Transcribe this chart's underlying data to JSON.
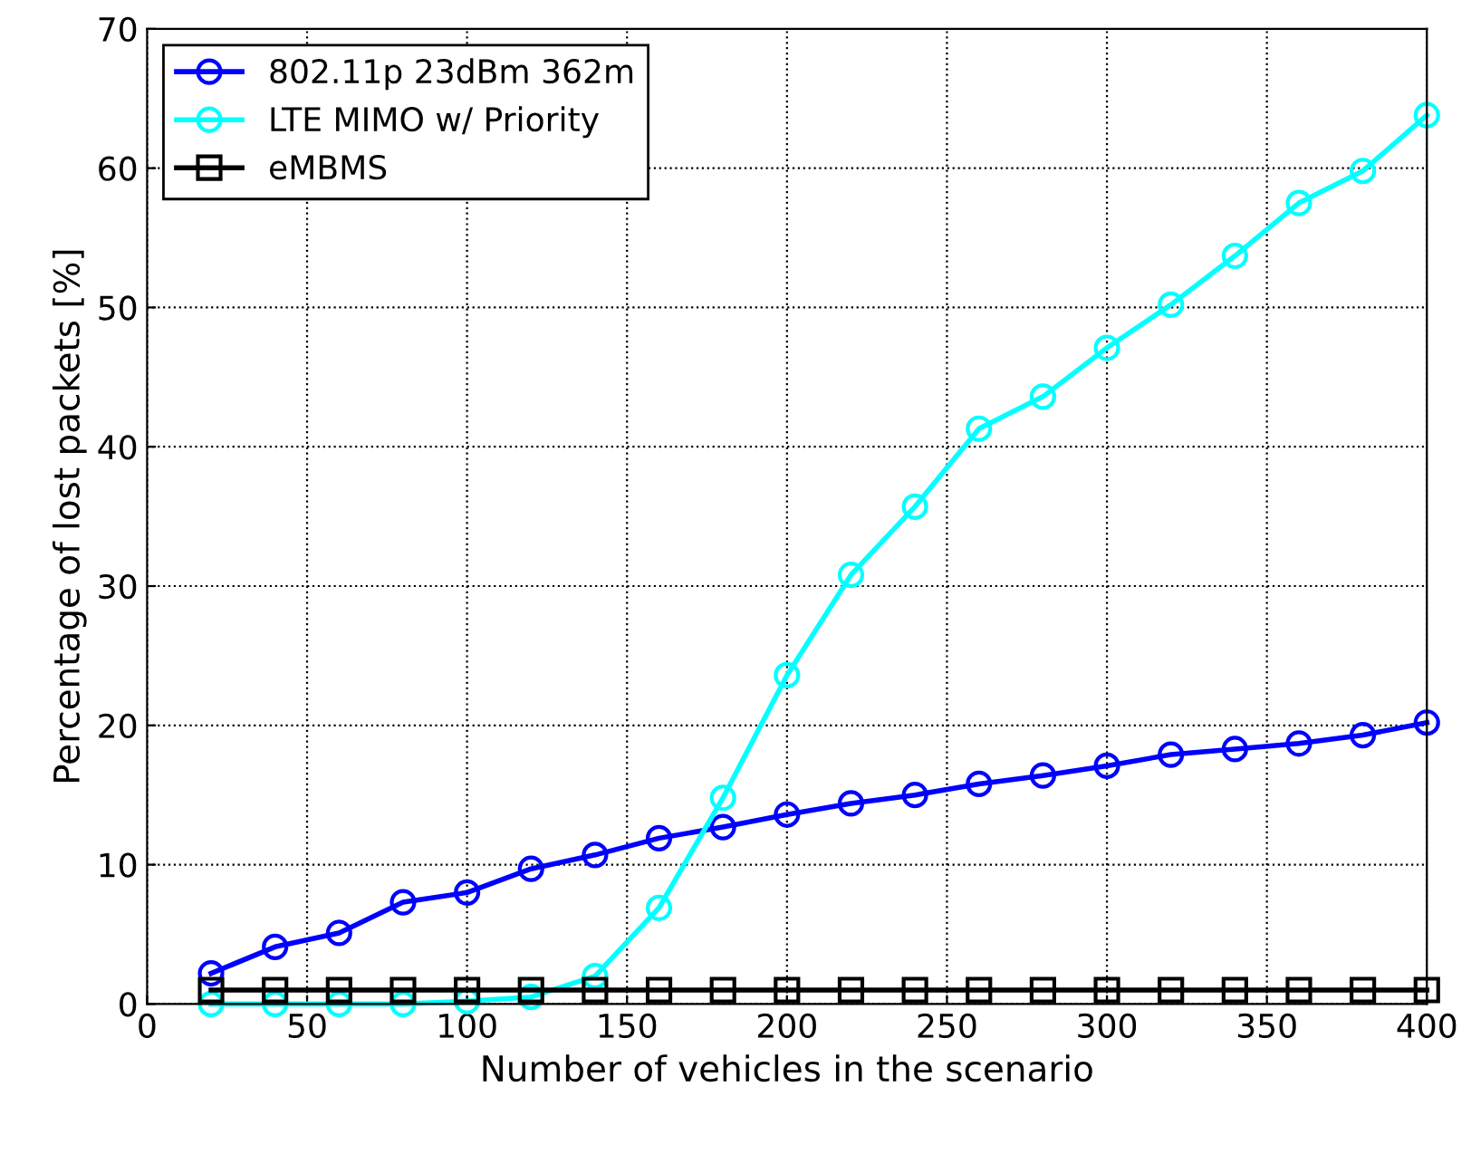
{
  "chart_data": {
    "type": "line",
    "xlabel": "Number of vehicles in the scenario",
    "ylabel": "Percentage of lost packets [%]",
    "x": [
      20,
      40,
      60,
      80,
      100,
      120,
      140,
      160,
      180,
      200,
      220,
      240,
      260,
      280,
      300,
      320,
      340,
      360,
      380,
      400
    ],
    "series": [
      {
        "name": "802.11p 23dBm 362m",
        "color": "#0000ff",
        "marker": "circle",
        "values": [
          2.2,
          4.1,
          5.1,
          7.3,
          8.0,
          9.7,
          10.7,
          11.9,
          12.7,
          13.6,
          14.4,
          15.0,
          15.8,
          16.4,
          17.1,
          17.9,
          18.3,
          18.7,
          19.3,
          20.2
        ]
      },
      {
        "name": "LTE MIMO w/ Priority",
        "color": "#00ffff",
        "marker": "circle",
        "values": [
          0,
          0,
          0,
          0,
          0.2,
          0.5,
          2.0,
          6.9,
          14.8,
          23.6,
          30.8,
          35.7,
          41.3,
          43.6,
          47.1,
          50.2,
          53.7,
          57.5,
          59.8,
          63.8
        ]
      },
      {
        "name": "eMBMS",
        "color": "#000000",
        "marker": "square",
        "values": [
          1,
          1,
          1,
          1,
          1,
          1,
          1,
          1,
          1,
          1,
          1,
          1,
          1,
          1,
          1,
          1,
          1,
          1,
          1,
          1
        ]
      }
    ],
    "xlim": [
      0,
      400
    ],
    "xticks": [
      0,
      50,
      100,
      150,
      200,
      250,
      300,
      350,
      400
    ],
    "ylim": [
      0,
      70
    ],
    "yticks": [
      0,
      10,
      20,
      30,
      40,
      50,
      60,
      70
    ],
    "grid": true,
    "legend": "top left",
    "line_style": "solid"
  }
}
